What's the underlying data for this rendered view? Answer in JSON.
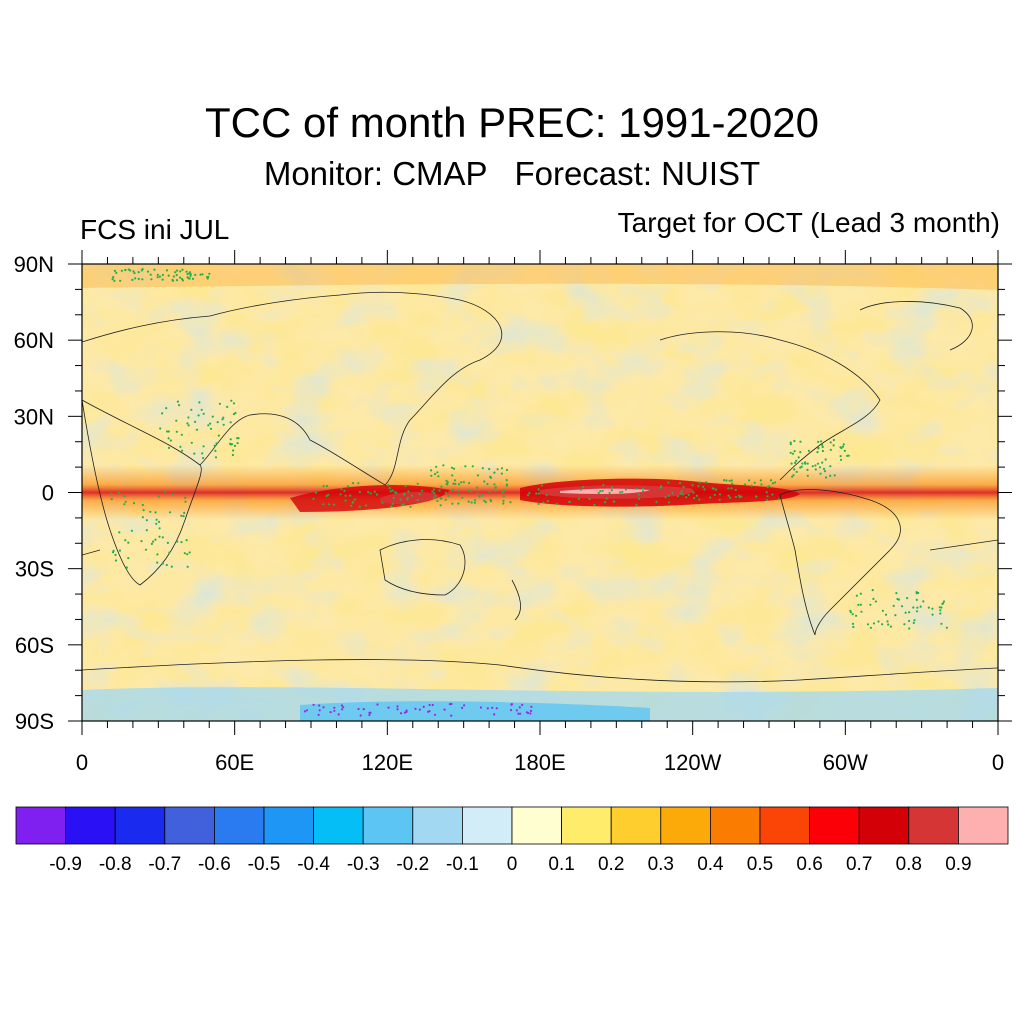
{
  "title": "TCC of month PREC: 1991-2020",
  "subtitle": "Monitor: CMAP   Forecast: NUIST",
  "left_label": "FCS ini JUL",
  "right_label": "Target for OCT (Lead 3 month)",
  "map": {
    "projection": "cylindrical equidistant",
    "lon_range": [
      0,
      360
    ],
    "lat_range": [
      -90,
      90
    ],
    "lat_ticks": [
      {
        "value": 90,
        "label": "90N"
      },
      {
        "value": 60,
        "label": "60N"
      },
      {
        "value": 30,
        "label": "30N"
      },
      {
        "value": 0,
        "label": "0"
      },
      {
        "value": -30,
        "label": "30S"
      },
      {
        "value": -60,
        "label": "60S"
      },
      {
        "value": -90,
        "label": "90S"
      }
    ],
    "lon_ticks": [
      {
        "value": 0,
        "label": "0"
      },
      {
        "value": 60,
        "label": "60E"
      },
      {
        "value": 120,
        "label": "120E"
      },
      {
        "value": 180,
        "label": "180E"
      },
      {
        "value": 240,
        "label": "120W"
      },
      {
        "value": 300,
        "label": "60W"
      },
      {
        "value": 360,
        "label": "0"
      }
    ]
  },
  "colorbar": {
    "colors": [
      "#7f1ff0",
      "#2a10f5",
      "#1a2bef",
      "#4060dc",
      "#2a7bf0",
      "#1e96f5",
      "#05bef5",
      "#5cc5f4",
      "#a2d8f2",
      "#d2ecf8",
      "#fffed0",
      "#ffec6a",
      "#fece2e",
      "#fca90a",
      "#fa7d02",
      "#fa4506",
      "#fc0008",
      "#d40008",
      "#d53535",
      "#feb0b0"
    ],
    "labels": [
      "-0.9",
      "-0.8",
      "-0.7",
      "-0.6",
      "-0.5",
      "-0.4",
      "-0.3",
      "-0.2",
      "-0.1",
      "0",
      "0.1",
      "0.2",
      "0.3",
      "0.4",
      "0.5",
      "0.6",
      "0.7",
      "0.8",
      "0.9"
    ]
  }
}
